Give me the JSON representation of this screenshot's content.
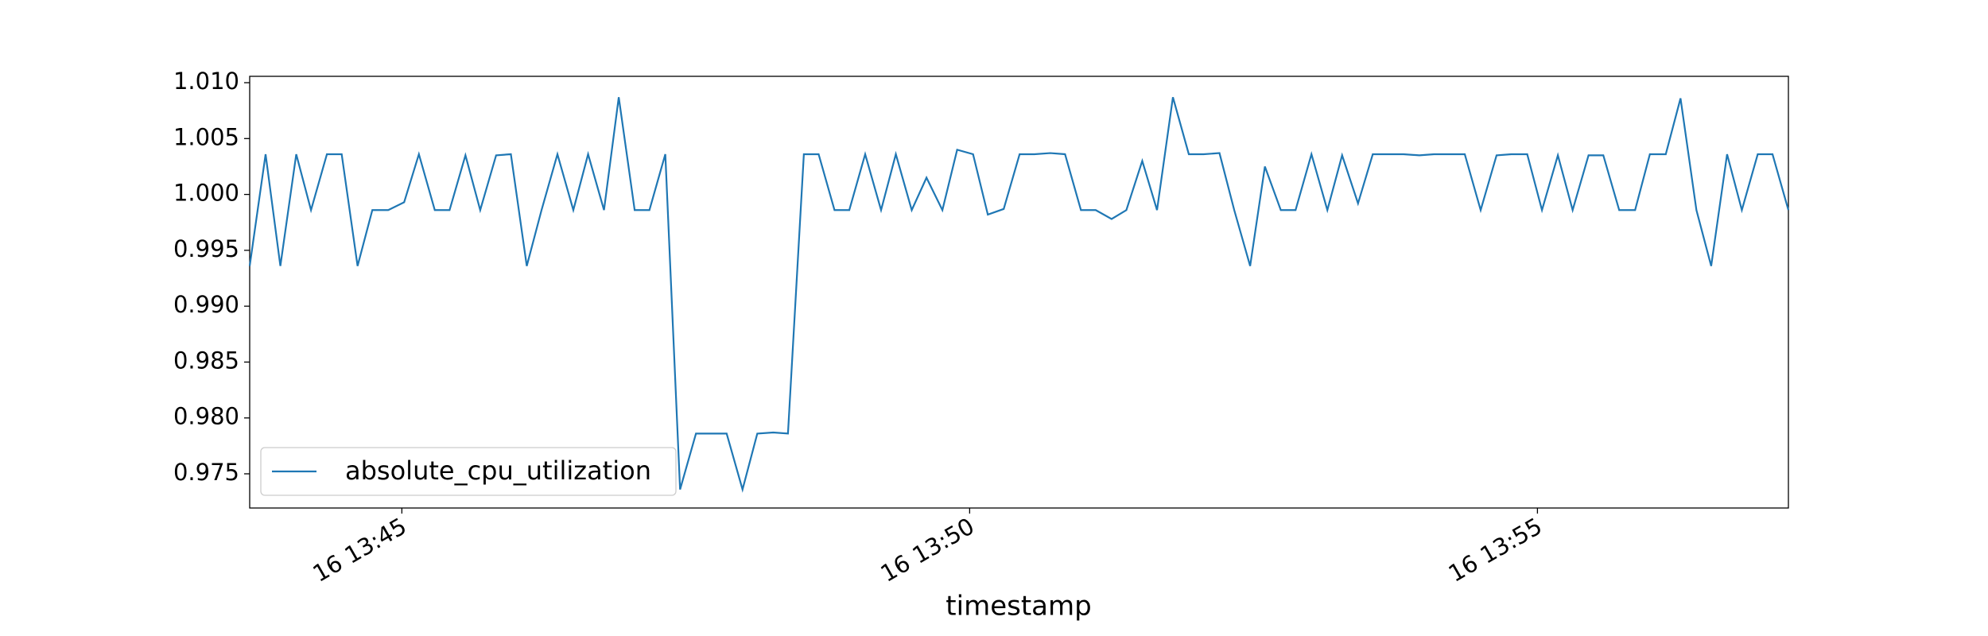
{
  "chart_data": {
    "type": "line",
    "xlabel": "timestamp",
    "x": [
      43.66,
      43.8,
      43.93,
      44.07,
      44.2,
      44.34,
      44.47,
      44.61,
      44.74,
      44.88,
      45.02,
      45.15,
      45.29,
      45.42,
      45.56,
      45.69,
      45.83,
      45.96,
      46.1,
      46.23,
      46.37,
      46.51,
      46.64,
      46.78,
      46.91,
      47.05,
      47.18,
      47.32,
      47.45,
      47.59,
      47.73,
      47.86,
      48.0,
      48.13,
      48.27,
      48.4,
      48.54,
      48.67,
      48.81,
      48.94,
      49.08,
      49.22,
      49.35,
      49.49,
      49.62,
      49.76,
      49.89,
      50.03,
      50.16,
      50.3,
      50.44,
      50.57,
      50.71,
      50.84,
      50.98,
      51.11,
      51.25,
      51.38,
      51.52,
      51.65,
      51.79,
      51.93,
      52.06,
      52.2,
      52.33,
      52.47,
      52.6,
      52.74,
      52.87,
      53.01,
      53.15,
      53.28,
      53.42,
      53.55,
      53.69,
      53.82,
      53.96,
      54.09,
      54.23,
      54.36,
      54.5,
      54.64,
      54.77,
      54.91,
      55.04,
      55.18,
      55.31,
      55.45,
      55.58,
      55.72,
      55.86,
      55.99,
      56.13,
      56.26,
      56.4,
      56.53,
      56.67,
      56.8,
      56.94,
      57.07,
      57.21
    ],
    "series": [
      {
        "name": "absolute_cpu_utilization",
        "color": "#1f77b4",
        "values": [
          0.9936,
          1.0036,
          0.9936,
          1.0036,
          0.9986,
          1.0036,
          1.0036,
          0.9936,
          0.9986,
          0.9986,
          0.9993,
          1.0036,
          0.9986,
          0.9986,
          1.0035,
          0.9986,
          1.0035,
          1.0036,
          0.9936,
          0.9986,
          1.0036,
          0.9986,
          1.0036,
          0.9986,
          1.0087,
          0.9986,
          0.9986,
          1.0036,
          0.9736,
          0.9786,
          0.9786,
          0.9786,
          0.9736,
          0.9786,
          0.9787,
          0.9786,
          1.0036,
          1.0036,
          0.9986,
          0.9986,
          1.0036,
          0.9986,
          1.0036,
          0.9986,
          1.0015,
          0.9986,
          1.004,
          1.0036,
          0.9982,
          0.9987,
          1.0036,
          1.0036,
          1.0037,
          1.0036,
          0.9986,
          0.9986,
          0.9978,
          0.9986,
          1.003,
          0.9986,
          1.0087,
          1.0036,
          1.0036,
          1.0037,
          0.9986,
          0.9936,
          1.0025,
          0.9986,
          0.9986,
          1.0036,
          0.9986,
          1.0035,
          0.9992,
          1.0036,
          1.0036,
          1.0036,
          1.0035,
          1.0036,
          1.0036,
          1.0036,
          0.9986,
          1.0035,
          1.0036,
          1.0036,
          0.9986,
          1.0035,
          0.9986,
          1.0035,
          1.0035,
          0.9986,
          0.9986,
          1.0036,
          1.0036,
          1.0086,
          0.9986,
          0.9936,
          1.0036,
          0.9986,
          1.0036,
          1.0036,
          0.9986
        ]
      }
    ],
    "xlim": [
      43.66,
      57.21
    ],
    "xticks": [
      {
        "value": 45,
        "label": "16 13:45"
      },
      {
        "value": 50,
        "label": "16 13:50"
      },
      {
        "value": 55,
        "label": "16 13:55"
      }
    ],
    "ylim": [
      0.97194,
      1.01057
    ],
    "yticks": [
      {
        "value": 0.975,
        "label": "0.975"
      },
      {
        "value": 0.98,
        "label": "0.980"
      },
      {
        "value": 0.985,
        "label": "0.985"
      },
      {
        "value": 0.99,
        "label": "0.990"
      },
      {
        "value": 0.995,
        "label": "0.995"
      },
      {
        "value": 1.0,
        "label": "1.000"
      },
      {
        "value": 1.005,
        "label": "1.005"
      },
      {
        "value": 1.01,
        "label": "1.010"
      }
    ],
    "legend": "lower left"
  }
}
